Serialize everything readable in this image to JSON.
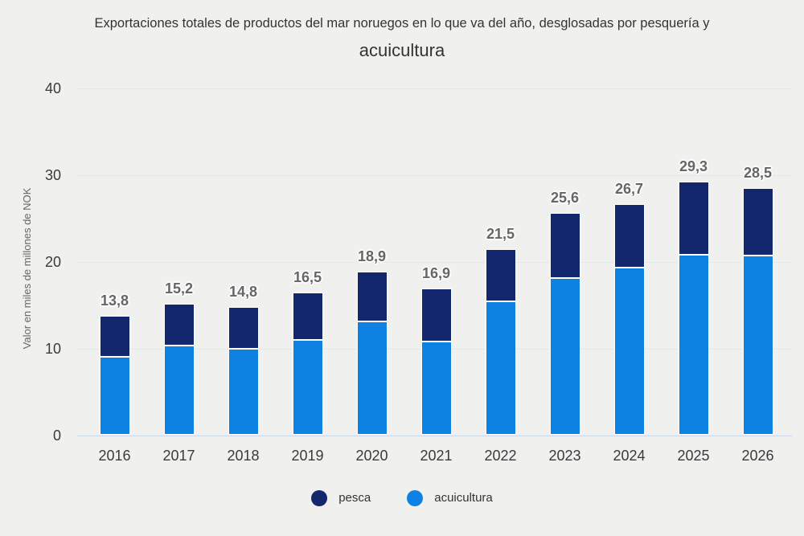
{
  "chart_data": {
    "type": "bar",
    "stacked": true,
    "title_line1": "Exportaciones totales de productos del mar noruegos en lo que va del año, desglosadas por pesquería y",
    "title_line2": "acuicultura",
    "ylabel": "Valor en miles de millones de NOK",
    "xlabel": "",
    "categories": [
      "2016",
      "2017",
      "2018",
      "2019",
      "2020",
      "2021",
      "2022",
      "2023",
      "2024",
      "2025",
      "2026"
    ],
    "series": [
      {
        "name": "acuicultura",
        "color": "#0e82e2",
        "values": [
          9.0,
          10.3,
          10.0,
          11.0,
          13.1,
          10.8,
          15.4,
          18.1,
          19.3,
          20.8,
          20.7
        ]
      },
      {
        "name": "pesca",
        "color": "#12276d",
        "values": [
          4.8,
          4.9,
          4.8,
          5.5,
          5.8,
          6.1,
          6.1,
          7.5,
          7.4,
          8.5,
          7.8
        ]
      }
    ],
    "totals": [
      13.8,
      15.2,
      14.8,
      16.5,
      18.9,
      16.9,
      21.5,
      25.6,
      26.7,
      29.3,
      28.5
    ],
    "total_labels": [
      "13,8",
      "15,2",
      "14,8",
      "16,5",
      "18,9",
      "16,9",
      "21,5",
      "25,6",
      "26,7",
      "29,3",
      "28,5"
    ],
    "ylim": [
      0,
      40
    ],
    "yticks": [
      0,
      10,
      20,
      30,
      40
    ],
    "grid": true,
    "legend": [
      {
        "name": "pesca",
        "color": "#12276d"
      },
      {
        "name": "acuicultura",
        "color": "#0e82e2"
      }
    ],
    "legend_position": "bottom-center",
    "background_color": "#f0f1ee"
  }
}
